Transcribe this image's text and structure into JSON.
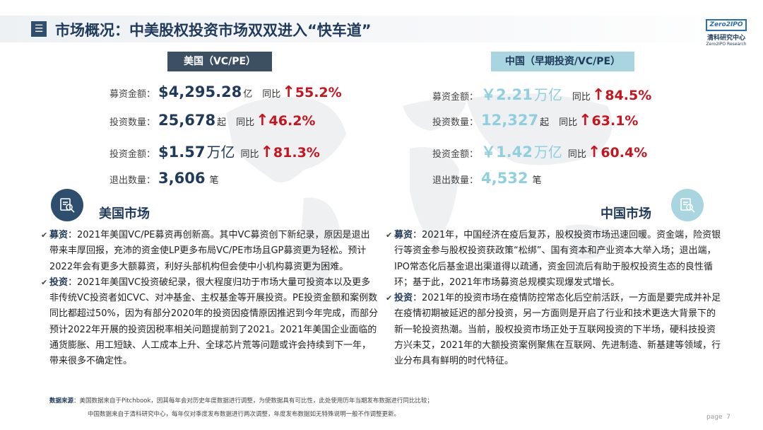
{
  "header": {
    "menu_glyph": "☰",
    "title": "市场概况：中美股权投资市场双双进入“快车道”",
    "logo": {
      "box": "Zero2IPO",
      "cn": "清科研究中心",
      "en": "Zero2IPO Research"
    }
  },
  "us": {
    "heading": "美国（VC/PE）",
    "stats": [
      {
        "label": "募资金额",
        "value": "$4,295.28",
        "unit": "亿",
        "yoy_label": "同比",
        "yoy": "55.2%"
      },
      {
        "label": "投资数量",
        "value": "25,678",
        "unit": "起",
        "yoy_label": "同比",
        "yoy": "46.2%"
      },
      {
        "label": "投资金额",
        "value": "$1.57",
        "unit": "万亿",
        "yoy_label": "同比",
        "yoy": "81.3%"
      },
      {
        "label": "退出数量",
        "value": "3,606",
        "unit": "笔"
      }
    ],
    "market_title": "美国市场",
    "paragraphs": [
      {
        "kw": "募资",
        "text": "：2021年美国VC/PE募资再创新高。其中VC募资创下新纪录，原因是退出带来丰厚回报，充沛的资金使LP更多布局VC/PE市场且GP募资更为轻松。预计2022年会有更多大额募资，利好头部机构但会使中小机构募资更为困难。"
      },
      {
        "kw": "投资",
        "text": "：2021年美国VC投资破纪录，很大程度归功于市场大量可投资本以及更多非传统VC投资者如CVC、对冲基金、主权基金等开展投资。PE投资金额和案例数同比都超过50%，因为有部分2020年的投资因疫情原因推迟到今年完成，而部分预计2022年开展的投资因税率相关问题提前到了2021。2021年美国企业面临的通货膨胀、用工短缺、人工成本上升、全球芯片荒等问题或许会持续到下一年，带来很多不确定性。"
      }
    ]
  },
  "cn": {
    "heading": "中国（早期投资/VC/PE）",
    "stats": [
      {
        "label": "募资金额",
        "value": "￥2.21",
        "unit": "万亿",
        "yoy_label": "同比",
        "yoy": "84.5%"
      },
      {
        "label": "投资数量",
        "value": "12,327",
        "unit": "起",
        "yoy_label": "同比",
        "yoy": "63.1%"
      },
      {
        "label": "投资金额",
        "value": "￥1.42",
        "unit": "万亿",
        "yoy_label": "同比",
        "yoy": "60.4%"
      },
      {
        "label": "退出数量",
        "value": "4,532",
        "unit": "笔"
      }
    ],
    "market_title": "中国市场",
    "paragraphs": [
      {
        "kw": "募资",
        "text": "：2021年，中国经济在疫后复苏，股权投资市场迅速回暖。资金端，险资银行等资金参与股权投资获政策“松绑”、国有资本和产业资本大举入场；退出端，IPO常态化后基金退出渠道得以疏通，资金回流后有助于股权投资生态的良性循环；基于此，2021年市场募资总规模实现爆发式增长。"
      },
      {
        "kw": "投资",
        "text": "：2021年的投资市场在疫情防控常态化后空前活跃，一方面是要完成并补足在疫情初期被延迟的部分投资，另一方面则是开启了行业和技术更迭大背景下的新一轮投资热潮。当前，股权投资市场正处于互联网投资的下半场，硬科技投资方兴未艾，2021年的大额投资案例聚焦在互联网、先进制造、新基建等领域，行业分布具有鲜明的时代特征。"
      }
    ]
  },
  "footer": {
    "src_label": "数据来源",
    "line1": "：美国数据来自于Pitchbook，因其每年会对历史年度数据进行调整，为使数据具有可比性，此处使用历年当期发布数据进行同比比较；",
    "line2": "中国数据来自于清科研究中心，每年仅对季度发布数据进行两次调整，年度发布数据如无特殊说明一般不作调整更新。",
    "page_label": "page",
    "page_num": "7"
  },
  "colors": {
    "navy": "#1f3a5a",
    "teal": "#a8d5df",
    "red": "#c8141e",
    "cn_value": "#8fcfe0"
  }
}
